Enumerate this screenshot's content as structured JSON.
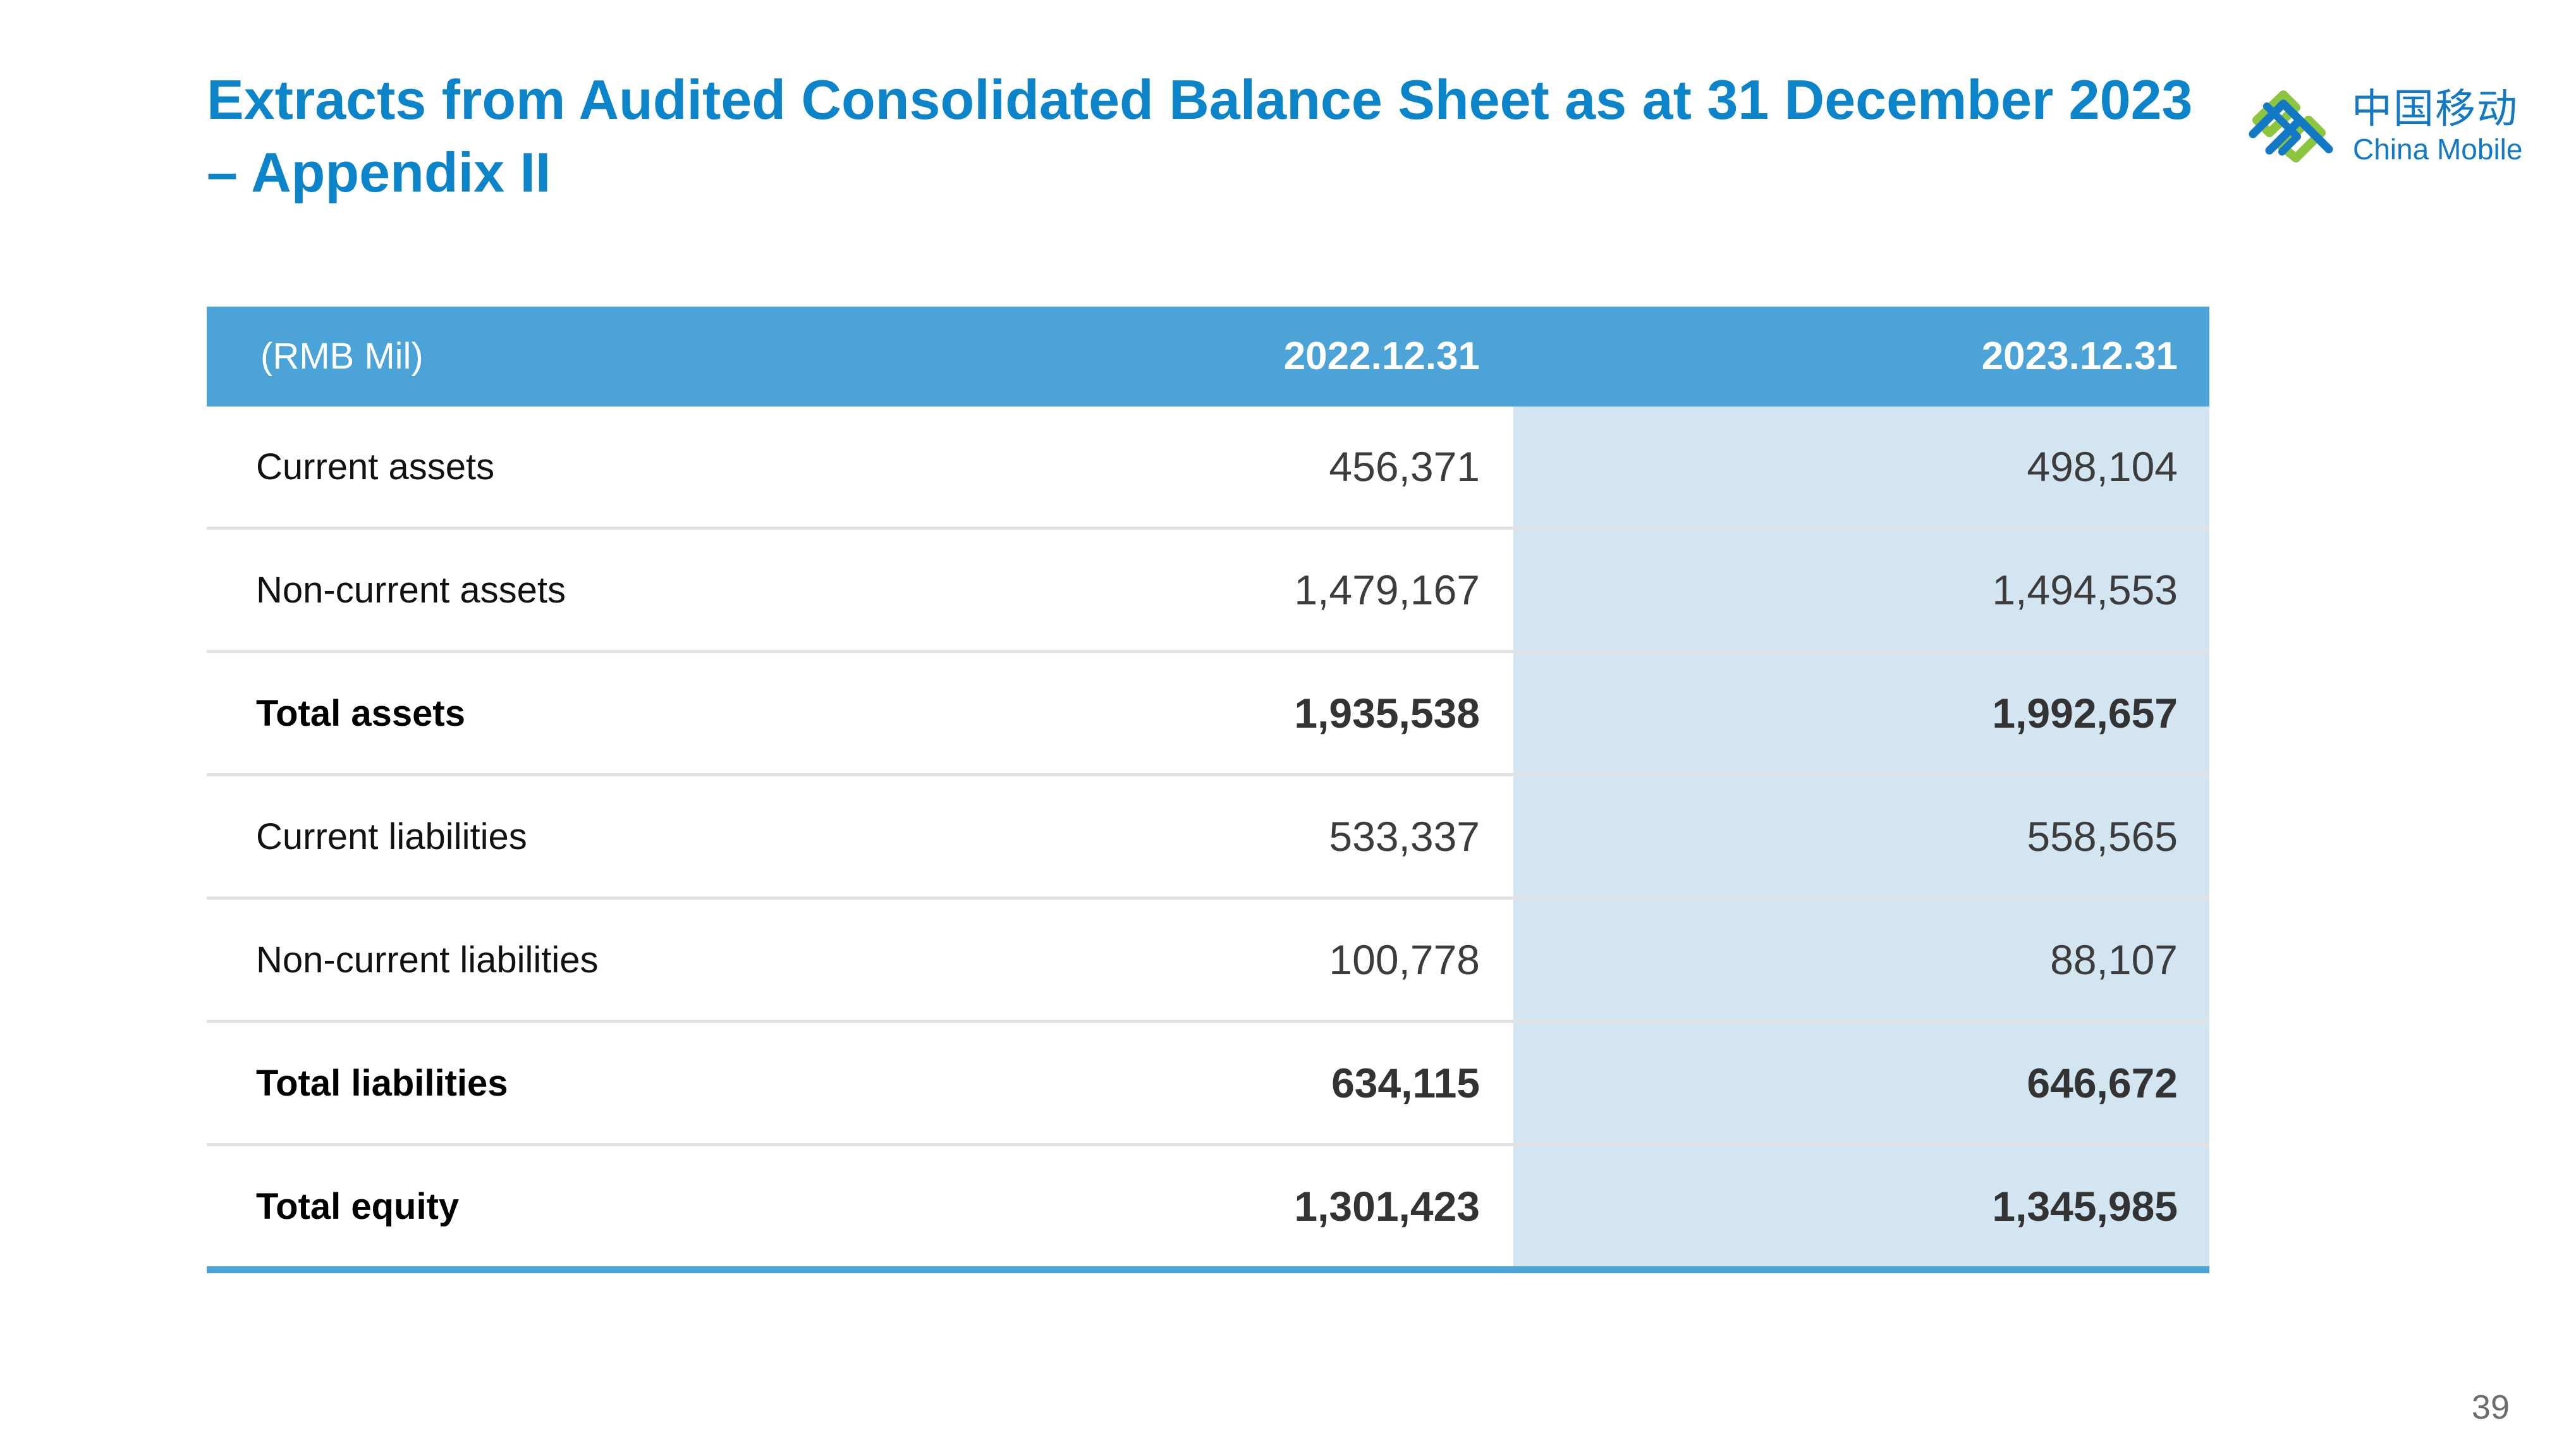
{
  "title": {
    "line1": "Extracts from Audited Consolidated Balance Sheet as at 31 December 2023",
    "line2": "– Appendix II"
  },
  "logo": {
    "cn": "中国移动",
    "en": "China Mobile",
    "icon": "china-mobile-logo-icon",
    "colors": {
      "green": "#8cc63f",
      "blue": "#1479c4"
    }
  },
  "table": {
    "header": {
      "unit": "(RMB Mil)",
      "col1": "2022.12.31",
      "col2": "2023.12.31"
    },
    "rows": [
      {
        "label": "Current assets",
        "v2022": "456,371",
        "v2023": "498,104",
        "bold": false
      },
      {
        "label": "Non-current assets",
        "v2022": "1,479,167",
        "v2023": "1,494,553",
        "bold": false
      },
      {
        "label": "Total assets",
        "v2022": "1,935,538",
        "v2023": "1,992,657",
        "bold": true
      },
      {
        "label": "Current liabilities",
        "v2022": "533,337",
        "v2023": "558,565",
        "bold": false
      },
      {
        "label": "Non-current liabilities",
        "v2022": "100,778",
        "v2023": "88,107",
        "bold": false
      },
      {
        "label": "Total liabilities",
        "v2022": "634,115",
        "v2023": "646,672",
        "bold": true
      },
      {
        "label": "Total equity",
        "v2022": "1,301,423",
        "v2023": "1,345,985",
        "bold": true
      }
    ]
  },
  "page_number": "39",
  "colors": {
    "title": "#0b84c9",
    "header_bg": "#4ba3d8",
    "highlight_col": "#d2e5f1"
  }
}
